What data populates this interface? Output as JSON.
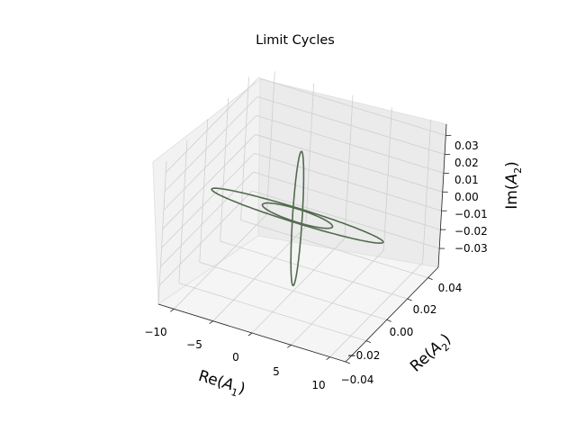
{
  "chart_data": {
    "type": "line",
    "projection": "3d",
    "title": "Limit Cycles",
    "xlabel": "Re(A_1)",
    "ylabel": "Re(A_2)",
    "zlabel": "Im(A_2)",
    "xlim": [
      -12,
      12
    ],
    "ylim": [
      -0.04,
      0.05
    ],
    "zlim": [
      -0.04,
      0.036
    ],
    "xticks": [
      "−10",
      "−5",
      "0",
      "5",
      "10"
    ],
    "yticks": [
      "−0.04",
      "−0.02",
      "0.00",
      "0.02",
      "0.04"
    ],
    "zticks": [
      "−0.03",
      "−0.02",
      "−0.01",
      "0.00",
      "0.01",
      "0.02",
      "0.03"
    ],
    "grid": true,
    "line_color": "#526b4e",
    "series": [
      {
        "description": "vertical ellipse",
        "x": [
          0.0,
          0.0,
          0.0,
          0.0,
          0.0
        ],
        "y": [
          0.0,
          0.005,
          0.0,
          -0.005,
          0.0
        ],
        "z": [
          0.034,
          0.0,
          -0.037,
          0.0,
          0.034
        ]
      },
      {
        "description": "flat elongated loop",
        "x": [
          -11.0,
          0.0,
          11.0,
          0.0,
          -11.0
        ],
        "y": [
          0.0,
          0.0,
          0.0,
          0.0,
          0.0
        ],
        "z": [
          0.0,
          -0.004,
          0.0,
          0.004,
          0.0
        ]
      },
      {
        "description": "small central loop",
        "x": [
          -4.5,
          0.0,
          4.5,
          0.0,
          -4.5
        ],
        "y": [
          0.0,
          0.0,
          0.0,
          0.0,
          0.0
        ],
        "z": [
          0.0,
          -0.004,
          0.0,
          0.003,
          0.0
        ]
      }
    ]
  }
}
